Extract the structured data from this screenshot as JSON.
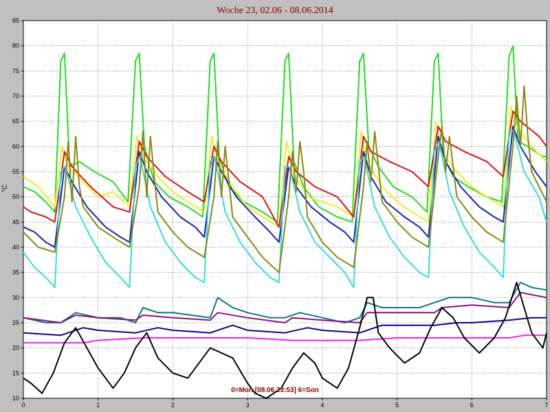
{
  "chart_data": {
    "type": "line",
    "title": "Woche 23, 02.06 - 08.06.2014",
    "ylabel": "°C",
    "footer": "0=Mon  [08.06 23:53]  6=Son",
    "xlim": [
      0,
      7
    ],
    "ylim": [
      10,
      85
    ],
    "xticks": [
      "0",
      "1",
      "2",
      "3",
      "4",
      "5",
      "6",
      "7"
    ],
    "yticks": [
      "10",
      "15",
      "20",
      "25",
      "30",
      "35",
      "40",
      "45",
      "50",
      "55",
      "60",
      "65",
      "70",
      "75",
      "80",
      "85"
    ],
    "grid": true,
    "series": [
      {
        "color": "#22dd22",
        "x": [
          0,
          0.15,
          0.3,
          0.42,
          0.5,
          0.55,
          0.62,
          0.75,
          0.95,
          1.2,
          1.4,
          1.5,
          1.55,
          1.62,
          1.75,
          1.95,
          2.2,
          2.4,
          2.5,
          2.55,
          2.62,
          2.75,
          2.95,
          3.2,
          3.4,
          3.5,
          3.55,
          3.62,
          3.75,
          3.95,
          4.2,
          4.4,
          4.5,
          4.55,
          4.62,
          4.75,
          4.95,
          5.2,
          5.4,
          5.5,
          5.55,
          5.62,
          5.75,
          5.95,
          6.2,
          6.4,
          6.5,
          6.55,
          6.62,
          6.75,
          6.95,
          7
        ],
        "y": [
          52,
          51,
          49,
          47,
          77,
          78.5,
          56,
          57,
          55,
          53,
          49,
          77,
          78.5,
          60,
          53,
          50,
          48,
          46,
          77,
          78.5,
          58,
          52,
          49,
          47,
          45,
          77,
          78.5,
          57,
          52,
          48,
          46,
          45,
          77,
          78.5,
          60,
          56,
          52,
          50,
          47,
          77,
          78.5,
          58,
          54,
          52,
          50,
          49,
          78,
          80,
          61,
          60,
          58,
          58
        ]
      },
      {
        "color": "#eeee22",
        "x": [
          0,
          0.2,
          0.42,
          0.52,
          0.6,
          0.8,
          1.0,
          1.2,
          1.42,
          1.52,
          1.6,
          1.8,
          2.0,
          2.2,
          2.42,
          2.52,
          2.6,
          2.8,
          3.0,
          3.2,
          3.42,
          3.52,
          3.6,
          3.8,
          4.0,
          4.2,
          4.42,
          4.52,
          4.6,
          4.8,
          5.0,
          5.2,
          5.42,
          5.52,
          5.6,
          5.8,
          6.0,
          6.2,
          6.42,
          6.52,
          6.6,
          6.8,
          7
        ],
        "y": [
          54,
          52,
          48,
          60,
          56,
          53,
          50,
          51,
          48,
          62,
          58,
          54,
          51,
          49,
          47,
          62,
          57,
          52,
          48,
          46,
          44,
          61,
          55,
          50,
          49,
          48,
          46,
          63,
          57,
          52,
          49,
          47,
          45,
          65,
          59,
          55,
          52,
          50,
          48,
          68,
          64,
          60,
          57
        ]
      },
      {
        "color": "#dd1111",
        "x": [
          0,
          0.1,
          0.3,
          0.42,
          0.55,
          0.65,
          0.9,
          1.2,
          1.42,
          1.55,
          1.65,
          1.9,
          2.2,
          2.42,
          2.55,
          2.65,
          2.9,
          3.2,
          3.42,
          3.55,
          3.65,
          3.9,
          4.2,
          4.42,
          4.55,
          4.65,
          4.9,
          5.2,
          5.42,
          5.55,
          5.65,
          5.9,
          6.2,
          6.42,
          6.55,
          6.65,
          6.9,
          7
        ],
        "y": [
          48,
          47,
          46,
          45,
          59,
          56,
          52,
          48,
          47,
          61,
          58,
          54,
          51,
          49,
          60,
          57,
          53,
          50,
          44,
          58,
          55,
          52,
          50,
          46,
          62,
          59,
          57,
          55,
          52,
          64,
          61,
          59,
          57,
          54,
          67,
          65,
          62,
          60
        ]
      },
      {
        "color": "#1122bb",
        "x": [
          0,
          0.15,
          0.3,
          0.42,
          0.55,
          0.65,
          0.85,
          1.1,
          1.3,
          1.42,
          1.55,
          1.65,
          1.85,
          2.1,
          2.3,
          2.42,
          2.55,
          2.65,
          2.85,
          3.1,
          3.3,
          3.42,
          3.55,
          3.65,
          3.85,
          4.1,
          4.3,
          4.42,
          4.55,
          4.65,
          4.85,
          5.1,
          5.3,
          5.42,
          5.55,
          5.65,
          5.85,
          6.1,
          6.3,
          6.42,
          6.55,
          6.65,
          6.85,
          7
        ],
        "y": [
          44,
          43,
          41,
          40,
          56,
          53,
          48,
          44,
          42,
          41,
          59,
          55,
          50,
          46,
          44,
          42,
          58,
          55,
          50,
          46,
          43,
          41,
          56,
          52,
          48,
          45,
          43,
          41,
          59,
          54,
          49,
          46,
          44,
          42,
          62,
          57,
          52,
          48,
          46,
          45,
          64,
          60,
          55,
          52
        ]
      },
      {
        "color": "#33dddd",
        "x": [
          0,
          0.15,
          0.3,
          0.42,
          0.5,
          0.56,
          0.7,
          0.9,
          1.1,
          1.3,
          1.42,
          1.5,
          1.56,
          1.7,
          1.9,
          2.1,
          2.3,
          2.42,
          2.5,
          2.56,
          2.7,
          2.9,
          3.1,
          3.3,
          3.42,
          3.5,
          3.56,
          3.7,
          3.9,
          4.1,
          4.3,
          4.42,
          4.5,
          4.56,
          4.7,
          4.9,
          5.1,
          5.3,
          5.42,
          5.5,
          5.56,
          5.7,
          5.9,
          6.1,
          6.3,
          6.42,
          6.5,
          6.56,
          6.7,
          6.9,
          7
        ],
        "y": [
          39,
          36,
          34,
          32,
          55,
          56,
          48,
          42,
          37,
          34,
          32,
          56,
          58,
          48,
          41,
          37,
          34,
          33,
          57,
          58,
          47,
          41,
          37,
          34,
          33,
          56,
          56,
          47,
          41,
          38,
          35,
          32,
          57,
          58,
          48,
          42,
          38,
          35,
          34,
          59,
          61,
          51,
          44,
          39,
          36,
          34,
          63,
          63,
          55,
          50,
          45
        ]
      },
      {
        "color": "#888811",
        "x": [
          0,
          0.2,
          0.42,
          0.55,
          0.6,
          0.65,
          0.7,
          0.75,
          0.8,
          1.0,
          1.2,
          1.42,
          1.55,
          1.6,
          1.65,
          1.7,
          1.75,
          1.8,
          2.0,
          2.2,
          2.42,
          2.55,
          2.6,
          2.65,
          2.7,
          2.75,
          2.8,
          3.0,
          3.2,
          3.42,
          3.55,
          3.6,
          3.65,
          3.7,
          3.75,
          3.8,
          4.0,
          4.2,
          4.42,
          4.55,
          4.6,
          4.65,
          4.7,
          4.75,
          4.8,
          5.0,
          5.2,
          5.42,
          5.55,
          5.6,
          5.65,
          5.7,
          5.75,
          5.8,
          6.0,
          6.2,
          6.42,
          6.55,
          6.6,
          6.65,
          6.7,
          6.75,
          6.8,
          7
        ],
        "y": [
          43,
          40,
          39,
          50,
          61,
          49,
          62,
          52,
          48,
          44,
          42,
          40,
          52,
          63,
          50,
          62,
          54,
          47,
          43,
          40,
          38,
          50,
          61,
          50,
          60,
          53,
          46,
          42,
          38,
          35,
          50,
          59,
          51,
          61,
          55,
          46,
          41,
          38,
          36,
          52,
          61,
          53,
          63,
          56,
          49,
          45,
          42,
          40,
          58,
          64,
          55,
          62,
          56,
          50,
          46,
          43,
          41,
          60,
          70,
          60,
          72,
          62,
          55,
          49
        ]
      },
      {
        "color": "#117777",
        "x": [
          0,
          0.3,
          0.5,
          0.7,
          1.0,
          1.3,
          1.5,
          1.6,
          1.8,
          2.0,
          2.5,
          2.6,
          2.8,
          3.0,
          3.3,
          3.5,
          3.7,
          4.0,
          4.3,
          4.5,
          4.6,
          4.8,
          5.0,
          5.3,
          5.5,
          5.7,
          6.0,
          6.3,
          6.5,
          6.65,
          6.8,
          7
        ],
        "y": [
          26,
          25,
          25,
          27,
          26,
          26,
          25,
          28,
          27,
          27,
          26,
          30,
          28,
          27,
          26,
          26,
          27,
          26,
          25,
          26,
          29,
          28,
          28,
          28,
          29,
          30,
          30,
          29,
          29,
          33,
          32,
          31.5
        ]
      },
      {
        "color": "#881188",
        "x": [
          0,
          0.5,
          0.7,
          1.0,
          1.5,
          1.6,
          2.0,
          2.5,
          2.6,
          3.0,
          3.5,
          3.6,
          4.0,
          4.5,
          4.6,
          5.0,
          5.5,
          5.6,
          6.0,
          6.5,
          6.65,
          7
        ],
        "y": [
          26,
          25,
          26.5,
          26,
          25.5,
          26.5,
          26,
          25.5,
          27,
          26,
          25,
          26,
          25.5,
          25,
          27,
          27,
          27,
          28,
          28.5,
          28,
          31,
          30
        ]
      },
      {
        "color": "#110088",
        "x": [
          0,
          0.5,
          0.8,
          1.0,
          1.5,
          1.8,
          2.0,
          2.5,
          2.8,
          3.0,
          3.5,
          3.8,
          4.0,
          4.5,
          4.8,
          5.0,
          5.5,
          5.8,
          6.0,
          6.5,
          6.8,
          7
        ],
        "y": [
          23,
          22.5,
          24,
          23.5,
          23,
          24,
          23.5,
          23,
          24.5,
          23.5,
          23,
          24,
          23.5,
          23,
          24.5,
          24.5,
          24.5,
          25,
          25,
          25.5,
          26,
          26
        ]
      },
      {
        "color": "#ee22ee",
        "x": [
          0,
          0.8,
          1.0,
          1.6,
          2.0,
          3.0,
          3.6,
          4.0,
          4.5,
          5.0,
          6.5,
          6.7,
          7
        ],
        "y": [
          21,
          21,
          21.5,
          22,
          22,
          22,
          21.5,
          21.5,
          21.5,
          22,
          22,
          22.5,
          22.5
        ]
      },
      {
        "color": "#000000",
        "x": [
          0,
          0.1,
          0.25,
          0.4,
          0.55,
          0.7,
          0.85,
          1.0,
          1.2,
          1.35,
          1.5,
          1.65,
          1.8,
          2.0,
          2.2,
          2.35,
          2.5,
          2.65,
          2.8,
          3.0,
          3.1,
          3.25,
          3.45,
          3.6,
          3.75,
          3.9,
          4.0,
          4.2,
          4.35,
          4.5,
          4.6,
          4.68,
          4.75,
          4.9,
          5.1,
          5.3,
          5.45,
          5.6,
          5.75,
          5.9,
          6.1,
          6.3,
          6.45,
          6.6,
          6.7,
          6.8,
          6.95,
          7
        ],
        "y": [
          14,
          13,
          11,
          15,
          21,
          24,
          20,
          16,
          12,
          15,
          20,
          23,
          18,
          15,
          14,
          17,
          20,
          19,
          18,
          13,
          11,
          10,
          12,
          16,
          19,
          17,
          14,
          12,
          16,
          24,
          30,
          30,
          23,
          20,
          17,
          19,
          24,
          28,
          26,
          22,
          19,
          22,
          26,
          33,
          28,
          23,
          20,
          23
        ]
      }
    ]
  }
}
